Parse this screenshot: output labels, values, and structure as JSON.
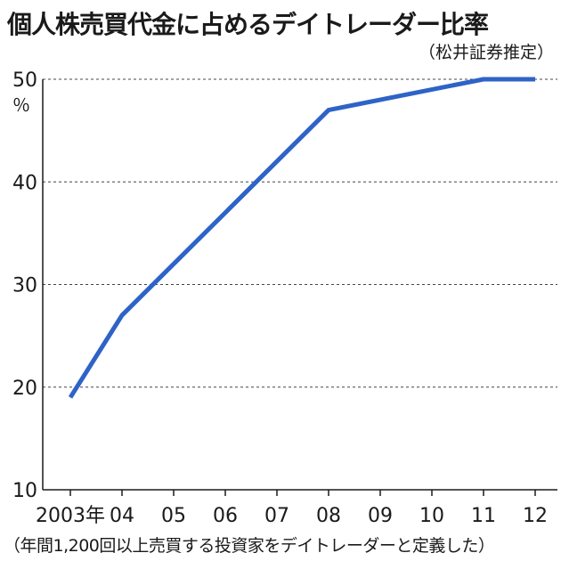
{
  "chart_data": {
    "type": "line",
    "title": "個人株売買代金に占めるデイトレーダー比率",
    "source": "（松井証券推定）",
    "footnote": "（年間1,200回以上売買する投資家をデイトレーダーと定義した）",
    "y_unit": "％",
    "ylim": [
      10,
      50
    ],
    "y_ticks": [
      10,
      20,
      30,
      40,
      50
    ],
    "categories": [
      "2003年",
      "04",
      "05",
      "06",
      "07",
      "08",
      "09",
      "10",
      "11",
      "12"
    ],
    "series": [
      {
        "color": "#2e63c7",
        "points": [
          {
            "x": "2003年",
            "y": 19
          },
          {
            "x": "04",
            "y": 27
          },
          {
            "x": "08",
            "y": 47
          },
          {
            "x": "11",
            "y": 50
          },
          {
            "x": "12",
            "y": 50
          }
        ]
      }
    ],
    "grid": "horizontal-dashed",
    "legend": "none"
  }
}
